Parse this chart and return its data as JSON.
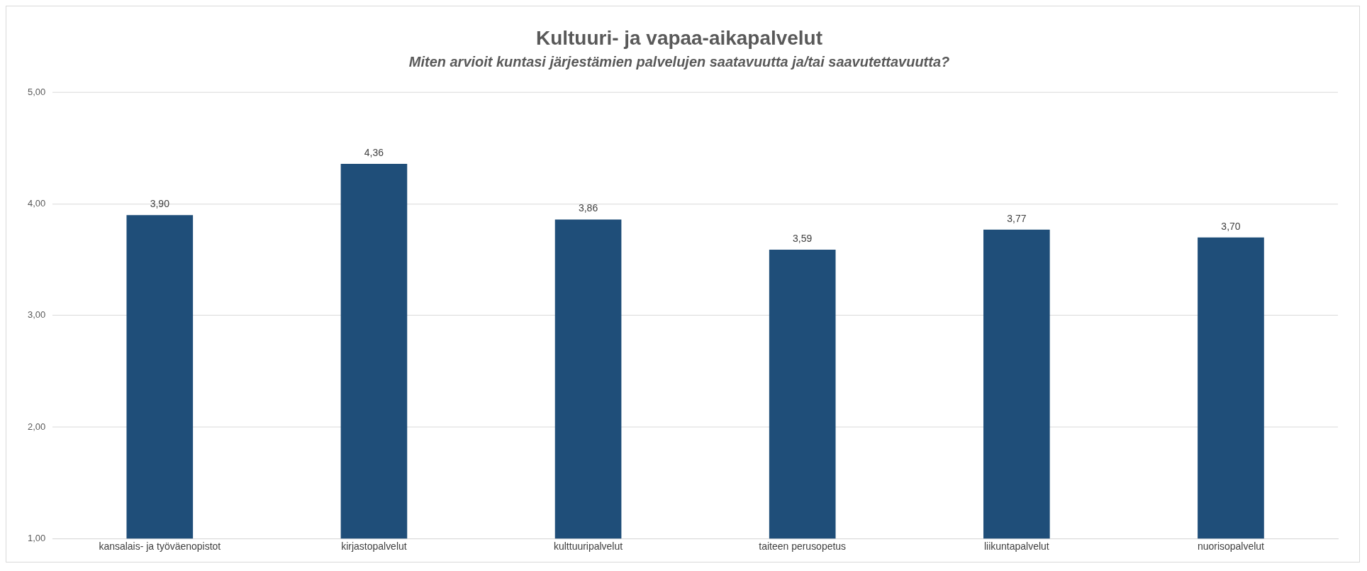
{
  "chart_data": {
    "type": "bar",
    "title": "Kultuuri- ja vapaa-aikapalvelut",
    "subtitle": "Miten arvioit kuntasi järjestämien palvelujen saatavuutta ja/tai saavutettavuutta?",
    "categories": [
      "kansalais- ja työväenopistot",
      "kirjastopalvelut",
      "kulttuuripalvelut",
      "taiteen perusopetus",
      "liikuntapalvelut",
      "nuorisopalvelut"
    ],
    "values": [
      3.9,
      4.36,
      3.86,
      3.59,
      3.77,
      3.7
    ],
    "value_labels": [
      "3,90",
      "4,36",
      "3,86",
      "3,59",
      "3,77",
      "3,70"
    ],
    "color": "#1f4e79",
    "ylim": [
      1,
      5
    ],
    "yticks": [
      {
        "value": 1,
        "label": "1,00"
      },
      {
        "value": 2,
        "label": "2,00"
      },
      {
        "value": 3,
        "label": "3,00"
      },
      {
        "value": 4,
        "label": "4,00"
      },
      {
        "value": 5,
        "label": "5,00"
      }
    ],
    "grid": "y"
  }
}
